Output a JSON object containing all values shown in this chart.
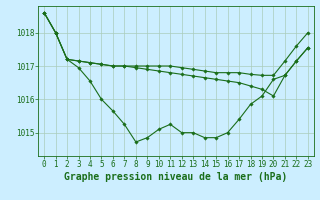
{
  "title": "Graphe pression niveau de la mer (hPa)",
  "bg_color": "#cceeff",
  "plot_bg_color": "#cceeff",
  "line_color": "#1a6e1a",
  "grid_color": "#aaccbb",
  "x_labels": [
    "0",
    "1",
    "2",
    "3",
    "4",
    "5",
    "6",
    "7",
    "8",
    "9",
    "10",
    "11",
    "12",
    "13",
    "14",
    "15",
    "16",
    "17",
    "18",
    "19",
    "20",
    "21",
    "22",
    "23"
  ],
  "ylim": [
    1014.3,
    1018.8
  ],
  "yticks": [
    1015,
    1016,
    1017,
    1018
  ],
  "line1_y": [
    1018.6,
    1018.0,
    1017.2,
    1016.95,
    1016.55,
    1016.0,
    1015.65,
    1015.25,
    1014.72,
    1014.85,
    1015.1,
    1015.25,
    1015.0,
    1015.0,
    1014.85,
    1014.85,
    1015.0,
    1015.4,
    1015.85,
    1016.1,
    1016.6,
    1016.72,
    1017.15,
    1017.55
  ],
  "line2_y": [
    1018.6,
    1018.0,
    1017.2,
    1017.15,
    1017.1,
    1017.05,
    1017.0,
    1017.0,
    1017.0,
    1017.0,
    1017.0,
    1017.0,
    1016.95,
    1016.9,
    1016.85,
    1016.8,
    1016.8,
    1016.8,
    1016.75,
    1016.72,
    1016.72,
    1017.15,
    1017.6,
    1018.0
  ],
  "line3_y": [
    1018.6,
    1018.0,
    1017.2,
    1017.15,
    1017.1,
    1017.05,
    1017.0,
    1017.0,
    1016.95,
    1016.9,
    1016.85,
    1016.8,
    1016.75,
    1016.7,
    1016.65,
    1016.6,
    1016.55,
    1016.5,
    1016.4,
    1016.3,
    1016.1,
    1016.72,
    1017.15,
    1017.55
  ],
  "marker": "D",
  "marker_size": 1.8,
  "line_width": 0.8,
  "title_fontsize": 7,
  "tick_fontsize": 5.5,
  "figsize": [
    3.2,
    2.0
  ],
  "dpi": 100
}
